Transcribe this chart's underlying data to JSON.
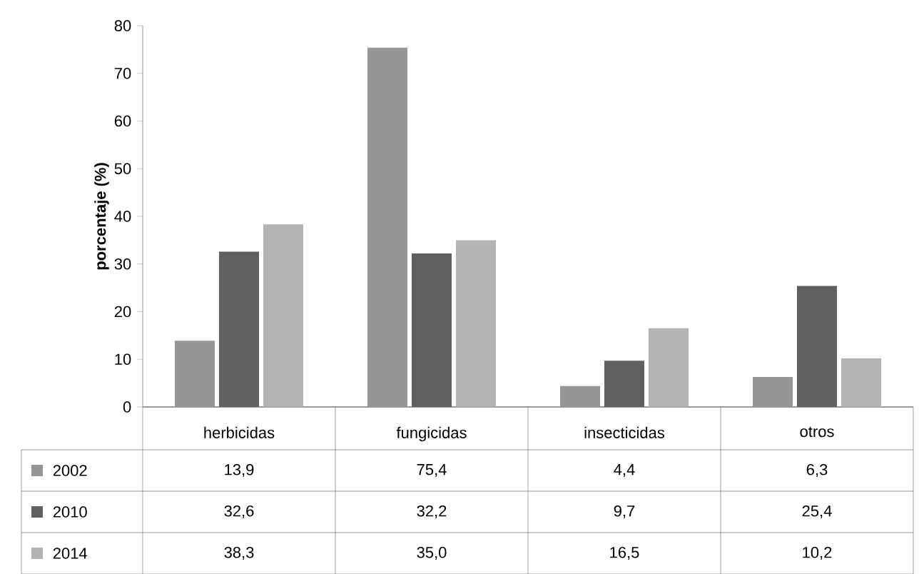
{
  "chart_data": {
    "type": "bar",
    "ylabel": "porcentaje (%)",
    "categories": [
      "herbicidas",
      "fungicidas",
      "insecticidas",
      "otros"
    ],
    "series": [
      {
        "name": "2002",
        "color": "#969696",
        "values": [
          13.9,
          75.4,
          4.4,
          6.3
        ],
        "value_labels": [
          "13,9",
          "75,4",
          "4,4",
          "6,3"
        ]
      },
      {
        "name": "2010",
        "color": "#606060",
        "values": [
          32.6,
          32.2,
          9.7,
          25.4
        ],
        "value_labels": [
          "32,6",
          "32,2",
          "9,7",
          "25,4"
        ]
      },
      {
        "name": "2014",
        "color": "#b4b4b4",
        "values": [
          38.3,
          35.0,
          16.5,
          10.2
        ],
        "value_labels": [
          "38,3",
          "35,0",
          "16,5",
          "10,2"
        ]
      }
    ],
    "ylim": [
      0,
      80
    ],
    "yticks": [
      0,
      10,
      20,
      30,
      40,
      50,
      60,
      70,
      80
    ],
    "grid": false,
    "legend": "bottom"
  }
}
